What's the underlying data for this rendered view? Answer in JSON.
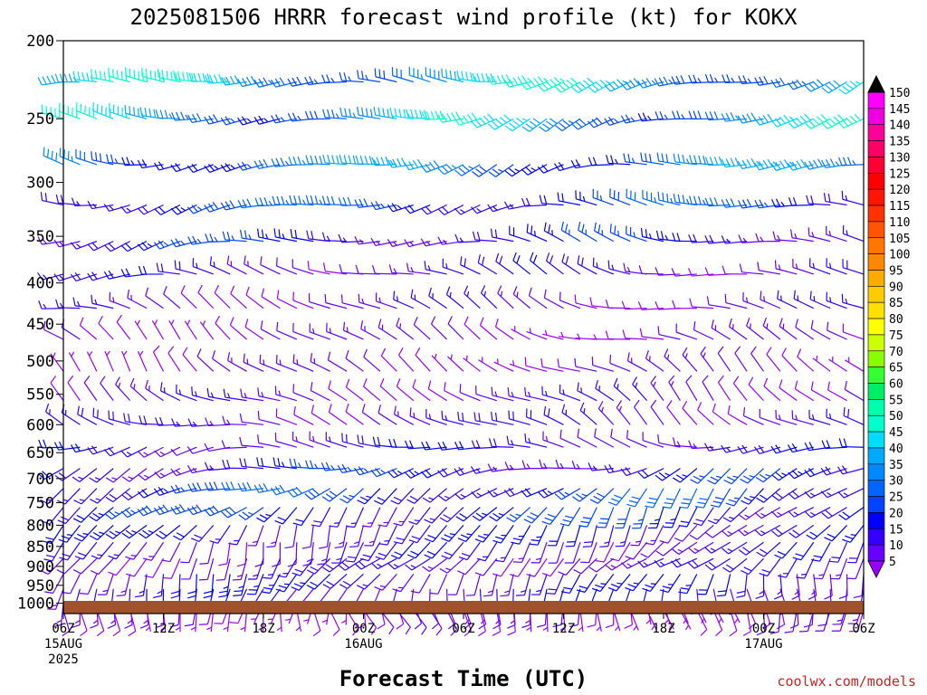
{
  "chart_data": {
    "type": "wind-profile",
    "title": "2025081506 HRRR forecast wind profile (kt) for KOKX",
    "xlabel": "Forecast Time (UTC)",
    "ylabel": "",
    "credit": "coolwx.com/models",
    "y_scale": "log-pressure",
    "ylim": [
      1030,
      200
    ],
    "pressure_ticks": [
      "200",
      "250",
      "300",
      "350",
      "400",
      "450",
      "500",
      "550",
      "600",
      "650",
      "700",
      "750",
      "800",
      "850",
      "900",
      "950",
      "1000"
    ],
    "x_ticks": [
      {
        "hour": 0,
        "line1": "06Z",
        "line2": "15AUG",
        "line3": "2025"
      },
      {
        "hour": 6,
        "line1": "12Z",
        "line2": "",
        "line3": ""
      },
      {
        "hour": 12,
        "line1": "18Z",
        "line2": "",
        "line3": ""
      },
      {
        "hour": 18,
        "line1": "00Z",
        "line2": "16AUG",
        "line3": ""
      },
      {
        "hour": 24,
        "line1": "06Z",
        "line2": "",
        "line3": ""
      },
      {
        "hour": 30,
        "line1": "12Z",
        "line2": "",
        "line3": ""
      },
      {
        "hour": 36,
        "line1": "18Z",
        "line2": "",
        "line3": ""
      },
      {
        "hour": 42,
        "line1": "00Z",
        "line2": "17AUG",
        "line3": ""
      },
      {
        "hour": 48,
        "line1": "06Z",
        "line2": "",
        "line3": ""
      }
    ],
    "xlim_hours": [
      0,
      48
    ],
    "colorbar": {
      "levels": [
        "150",
        "145",
        "140",
        "135",
        "130",
        "125",
        "120",
        "115",
        "110",
        "105",
        "100",
        "95",
        "90",
        "85",
        "80",
        "75",
        "70",
        "65",
        "60",
        "55",
        "50",
        "45",
        "40",
        "35",
        "30",
        "25",
        "20",
        "15",
        "10",
        "5"
      ],
      "colors": [
        "#ff00ff",
        "#f000e0",
        "#ff0099",
        "#ff0066",
        "#ff0033",
        "#ff0000",
        "#ff1500",
        "#ff3300",
        "#ff5500",
        "#ff7700",
        "#ff8800",
        "#ffaa00",
        "#ffcc00",
        "#ffe000",
        "#ffff00",
        "#ccff00",
        "#88ff00",
        "#33ff33",
        "#00ee66",
        "#00ffaa",
        "#00ffcc",
        "#00ddff",
        "#00aaff",
        "#0088ff",
        "#0066ff",
        "#0044ff",
        "#0000ff",
        "#3300ff",
        "#6600ff",
        "#9900ff"
      ]
    },
    "ground_color": "#a0522d",
    "levels_hpa": [
      225,
      250,
      285,
      320,
      355,
      390,
      430,
      470,
      515,
      560,
      600,
      640,
      680,
      720,
      760,
      800,
      840,
      880,
      920,
      960,
      1000,
      1020
    ],
    "layer_flow": [
      {
        "p": 225,
        "dir": 262,
        "spd": 40
      },
      {
        "p": 250,
        "dir": 262,
        "spd": 38
      },
      {
        "p": 285,
        "dir": 265,
        "spd": 32
      },
      {
        "p": 320,
        "dir": 268,
        "spd": 25
      },
      {
        "p": 355,
        "dir": 272,
        "spd": 20
      },
      {
        "p": 390,
        "dir": 280,
        "spd": 15
      },
      {
        "p": 430,
        "dir": 290,
        "spd": 12
      },
      {
        "p": 470,
        "dir": 300,
        "spd": 10
      },
      {
        "p": 515,
        "dir": 310,
        "spd": 10
      },
      {
        "p": 560,
        "dir": 305,
        "spd": 12
      },
      {
        "p": 600,
        "dir": 295,
        "spd": 14
      },
      {
        "p": 640,
        "dir": 270,
        "spd": 16
      },
      {
        "p": 680,
        "dir": 250,
        "spd": 20
      },
      {
        "p": 720,
        "dir": 235,
        "spd": 24
      },
      {
        "p": 760,
        "dir": 225,
        "spd": 22
      },
      {
        "p": 800,
        "dir": 215,
        "spd": 18
      },
      {
        "p": 840,
        "dir": 210,
        "spd": 15
      },
      {
        "p": 880,
        "dir": 220,
        "spd": 14
      },
      {
        "p": 920,
        "dir": 200,
        "spd": 18
      },
      {
        "p": 960,
        "dir": 190,
        "spd": 16
      },
      {
        "p": 1000,
        "dir": 180,
        "spd": 10
      },
      {
        "p": 1020,
        "dir": 170,
        "spd": 8
      }
    ],
    "barb_columns": 49
  }
}
